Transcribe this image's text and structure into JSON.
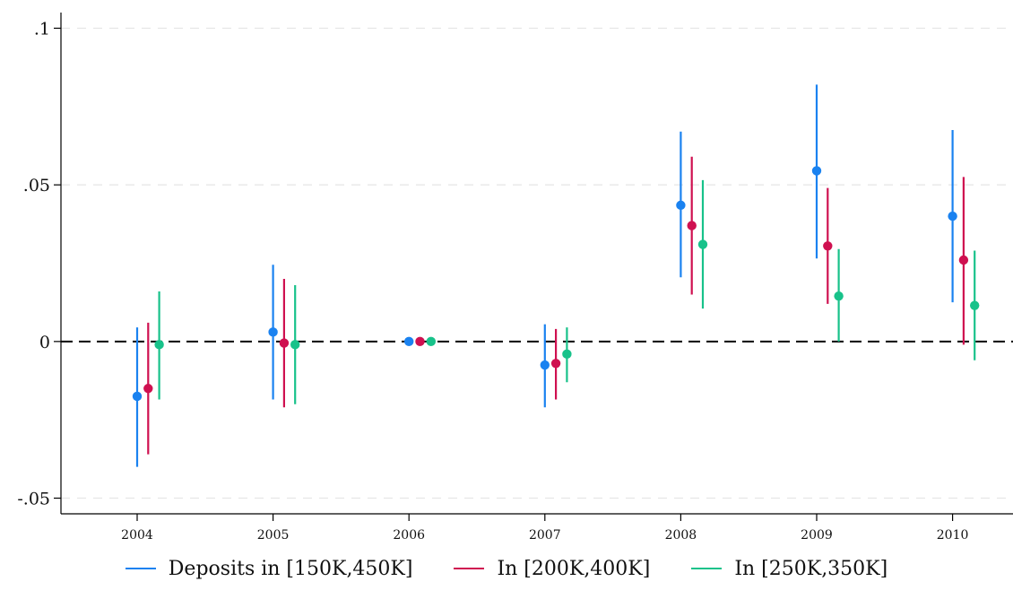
{
  "chart_data": {
    "type": "scatter",
    "subtype": "coefficient plot with confidence intervals",
    "title": "",
    "xlabel": "",
    "ylabel": "",
    "categories": [
      "2004",
      "2005",
      "2006",
      "2007",
      "2008",
      "2009",
      "2010"
    ],
    "ylim": [
      -0.055,
      0.105
    ],
    "yticks": [
      -0.05,
      0,
      0.05,
      0.1
    ],
    "ytick_labels": [
      "-.05",
      "0",
      ".05",
      ".1"
    ],
    "grid": "horizontal dashed",
    "reference_line": {
      "y": 0,
      "style": "dashed"
    },
    "legend_position": "bottom",
    "series": [
      {
        "name": "Deposits in [150K,450K]",
        "color": "#1a82f0",
        "points": [
          {
            "x": "2004",
            "estimate": -0.0175,
            "lower": -0.04,
            "upper": 0.0045
          },
          {
            "x": "2005",
            "estimate": 0.003,
            "lower": -0.0185,
            "upper": 0.0245
          },
          {
            "x": "2006",
            "estimate": 0.0,
            "lower": 0.0,
            "upper": 0.0
          },
          {
            "x": "2007",
            "estimate": -0.0075,
            "lower": -0.021,
            "upper": 0.0055
          },
          {
            "x": "2008",
            "estimate": 0.0435,
            "lower": 0.0205,
            "upper": 0.067
          },
          {
            "x": "2009",
            "estimate": 0.0545,
            "lower": 0.0265,
            "upper": 0.082
          },
          {
            "x": "2010",
            "estimate": 0.04,
            "lower": 0.0125,
            "upper": 0.0675
          }
        ]
      },
      {
        "name": "In [200K,400K]",
        "color": "#cf1050",
        "points": [
          {
            "x": "2004",
            "estimate": -0.015,
            "lower": -0.036,
            "upper": 0.006
          },
          {
            "x": "2005",
            "estimate": -0.0005,
            "lower": -0.021,
            "upper": 0.02
          },
          {
            "x": "2006",
            "estimate": 0.0,
            "lower": 0.0,
            "upper": 0.0
          },
          {
            "x": "2007",
            "estimate": -0.007,
            "lower": -0.0185,
            "upper": 0.004
          },
          {
            "x": "2008",
            "estimate": 0.037,
            "lower": 0.015,
            "upper": 0.059
          },
          {
            "x": "2009",
            "estimate": 0.0305,
            "lower": 0.012,
            "upper": 0.049
          },
          {
            "x": "2010",
            "estimate": 0.026,
            "lower": -0.001,
            "upper": 0.0525
          }
        ]
      },
      {
        "name": "In [250K,350K]",
        "color": "#18c28a",
        "points": [
          {
            "x": "2004",
            "estimate": -0.001,
            "lower": -0.0185,
            "upper": 0.016
          },
          {
            "x": "2005",
            "estimate": -0.001,
            "lower": -0.02,
            "upper": 0.018
          },
          {
            "x": "2006",
            "estimate": 0.0,
            "lower": 0.0,
            "upper": 0.0
          },
          {
            "x": "2007",
            "estimate": -0.004,
            "lower": -0.013,
            "upper": 0.0045
          },
          {
            "x": "2008",
            "estimate": 0.031,
            "lower": 0.0105,
            "upper": 0.0515
          },
          {
            "x": "2009",
            "estimate": 0.0145,
            "lower": 0.0,
            "upper": 0.0295
          },
          {
            "x": "2010",
            "estimate": 0.0115,
            "lower": -0.006,
            "upper": 0.029
          }
        ]
      }
    ]
  }
}
